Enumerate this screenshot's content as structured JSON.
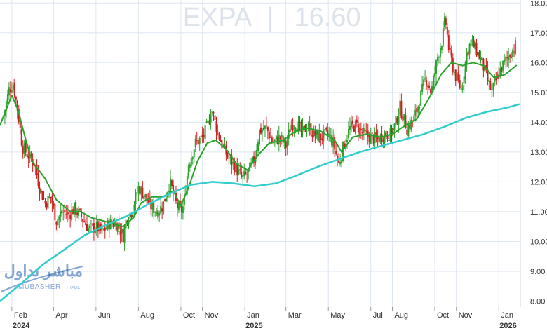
{
  "header": {
    "symbol": "EXPA",
    "separator": "|",
    "price": "16.60"
  },
  "watermark": {
    "arabic": "مباشر تداول",
    "latin": "MUBASHER",
    "sub": "TRADE"
  },
  "colors": {
    "up": "#2ca02c",
    "down": "#cc1f1f",
    "ma_short": "#2aa12a",
    "ma_long": "#33cccc",
    "grid": "#dde6f0",
    "axis_text": "#333333",
    "header_text": "#dde3ea",
    "logo": "#1f5fb0"
  },
  "chart_data": {
    "type": "candlestick",
    "title": "EXPA | 16.60",
    "x_ticks": [
      {
        "label": "Feb",
        "date": "2024-02-01"
      },
      {
        "label": "Apr",
        "date": "2024-04-01"
      },
      {
        "label": "Jun",
        "date": "2024-06-01"
      },
      {
        "label": "Aug",
        "date": "2024-08-01"
      },
      {
        "label": "Oct",
        "date": "2024-10-01"
      },
      {
        "label": "Nov",
        "date": "2024-11-01"
      },
      {
        "label": "Jan",
        "date": "2025-01-01"
      },
      {
        "label": "Mar",
        "date": "2025-03-01"
      },
      {
        "label": "May",
        "date": "2025-05-01"
      },
      {
        "label": "Jul",
        "date": "2025-07-01"
      },
      {
        "label": "Aug",
        "date": "2025-08-01"
      },
      {
        "label": "Oct",
        "date": "2025-10-01"
      },
      {
        "label": "Nov",
        "date": "2025-11-01"
      },
      {
        "label": "Jan",
        "date": "2026-01-01"
      }
    ],
    "year_labels": [
      {
        "label": "2024",
        "date": "2024-02-01"
      },
      {
        "label": "2025",
        "date": "2025-01-01"
      },
      {
        "label": "2026",
        "date": "2026-01-01"
      }
    ],
    "y_ticks": [
      "8.00",
      "9.00",
      "10.00",
      "11.00",
      "12.00",
      "13.00",
      "14.00",
      "15.00",
      "16.00",
      "17.00",
      "18.00"
    ],
    "ylim": [
      7.8,
      18.1
    ],
    "xlim": [
      "2024-01-15",
      "2026-02-01"
    ],
    "price_anchors": [
      [
        "2024-01-20",
        14.2
      ],
      [
        "2024-01-28",
        15.1
      ],
      [
        "2024-02-03",
        15.3
      ],
      [
        "2024-02-10",
        14.3
      ],
      [
        "2024-02-16",
        13.2
      ],
      [
        "2024-02-24",
        12.9
      ],
      [
        "2024-03-05",
        12.6
      ],
      [
        "2024-03-12",
        11.8
      ],
      [
        "2024-03-20",
        11.3
      ],
      [
        "2024-03-28",
        11.5
      ],
      [
        "2024-04-05",
        10.7
      ],
      [
        "2024-04-14",
        11.0
      ],
      [
        "2024-04-22",
        10.9
      ],
      [
        "2024-05-01",
        11.1
      ],
      [
        "2024-05-12",
        10.8
      ],
      [
        "2024-05-22",
        10.4
      ],
      [
        "2024-06-01",
        10.5
      ],
      [
        "2024-06-10",
        10.3
      ],
      [
        "2024-06-20",
        10.6
      ],
      [
        "2024-07-01",
        10.6
      ],
      [
        "2024-07-10",
        10.2
      ],
      [
        "2024-07-15",
        10.8
      ],
      [
        "2024-07-22",
        11.0
      ],
      [
        "2024-08-01",
        11.8
      ],
      [
        "2024-08-08",
        11.6
      ],
      [
        "2024-08-18",
        11.2
      ],
      [
        "2024-08-28",
        11.0
      ],
      [
        "2024-09-05",
        11.2
      ],
      [
        "2024-09-15",
        12.0
      ],
      [
        "2024-09-25",
        11.2
      ],
      [
        "2024-10-01",
        11.0
      ],
      [
        "2024-10-05",
        11.2
      ],
      [
        "2024-10-12",
        12.6
      ],
      [
        "2024-10-22",
        13.3
      ],
      [
        "2024-11-02",
        13.5
      ],
      [
        "2024-11-10",
        14.0
      ],
      [
        "2024-11-14",
        14.5
      ],
      [
        "2024-11-20",
        13.9
      ],
      [
        "2024-11-28",
        13.3
      ],
      [
        "2024-12-08",
        12.8
      ],
      [
        "2024-12-18",
        12.5
      ],
      [
        "2024-12-28",
        12.1
      ],
      [
        "2025-01-06",
        12.3
      ],
      [
        "2025-01-15",
        12.8
      ],
      [
        "2025-01-22",
        13.7
      ],
      [
        "2025-02-01",
        13.8
      ],
      [
        "2025-02-10",
        13.3
      ],
      [
        "2025-02-20",
        13.5
      ],
      [
        "2025-03-01",
        13.2
      ],
      [
        "2025-03-08",
        13.9
      ],
      [
        "2025-03-16",
        14.0
      ],
      [
        "2025-03-24",
        13.6
      ],
      [
        "2025-04-01",
        13.9
      ],
      [
        "2025-04-10",
        13.6
      ],
      [
        "2025-04-20",
        13.5
      ],
      [
        "2025-05-01",
        13.6
      ],
      [
        "2025-05-08",
        13.3
      ],
      [
        "2025-05-16",
        12.6
      ],
      [
        "2025-05-24",
        13.3
      ],
      [
        "2025-06-01",
        13.8
      ],
      [
        "2025-06-10",
        13.9
      ],
      [
        "2025-06-20",
        13.6
      ],
      [
        "2025-07-01",
        13.5
      ],
      [
        "2025-07-10",
        13.4
      ],
      [
        "2025-07-20",
        13.6
      ],
      [
        "2025-07-30",
        13.6
      ],
      [
        "2025-08-05",
        13.9
      ],
      [
        "2025-08-12",
        14.5
      ],
      [
        "2025-08-22",
        13.8
      ],
      [
        "2025-09-01",
        14.1
      ],
      [
        "2025-09-10",
        14.8
      ],
      [
        "2025-09-18",
        15.5
      ],
      [
        "2025-09-26",
        15.0
      ],
      [
        "2025-10-05",
        16.2
      ],
      [
        "2025-10-12",
        16.8
      ],
      [
        "2025-10-16",
        17.5
      ],
      [
        "2025-10-22",
        16.3
      ],
      [
        "2025-10-30",
        15.6
      ],
      [
        "2025-11-08",
        15.1
      ],
      [
        "2025-11-16",
        16.3
      ],
      [
        "2025-11-22",
        16.7
      ],
      [
        "2025-11-30",
        16.4
      ],
      [
        "2025-12-08",
        16.0
      ],
      [
        "2025-12-16",
        15.4
      ],
      [
        "2025-12-22",
        15.0
      ],
      [
        "2025-12-28",
        15.4
      ],
      [
        "2026-01-04",
        15.8
      ],
      [
        "2026-01-12",
        16.1
      ],
      [
        "2026-01-20",
        16.4
      ],
      [
        "2026-01-26",
        16.6
      ]
    ],
    "series": [
      {
        "name": "",
        "type": "line",
        "color": "#2aa12a",
        "points": [
          [
            "2024-01-15",
            13.9
          ],
          [
            "2024-02-01",
            14.9
          ],
          [
            "2024-02-10",
            14.4
          ],
          [
            "2024-02-20",
            13.5
          ],
          [
            "2024-03-01",
            12.7
          ],
          [
            "2024-03-20",
            12.1
          ],
          [
            "2024-04-05",
            11.4
          ],
          [
            "2024-04-25",
            11.0
          ],
          [
            "2024-05-10",
            11.0
          ],
          [
            "2024-05-25",
            10.8
          ],
          [
            "2024-06-10",
            10.7
          ],
          [
            "2024-06-25",
            10.6
          ],
          [
            "2024-07-10",
            10.5
          ],
          [
            "2024-07-25",
            10.8
          ],
          [
            "2024-08-05",
            11.3
          ],
          [
            "2024-08-20",
            11.5
          ],
          [
            "2024-09-05",
            11.5
          ],
          [
            "2024-09-20",
            11.7
          ],
          [
            "2024-10-01",
            11.2
          ],
          [
            "2024-10-12",
            11.8
          ],
          [
            "2024-10-25",
            12.7
          ],
          [
            "2024-11-08",
            13.3
          ],
          [
            "2024-11-20",
            13.4
          ],
          [
            "2024-12-05",
            13.1
          ],
          [
            "2024-12-20",
            12.6
          ],
          [
            "2025-01-05",
            12.4
          ],
          [
            "2025-01-20",
            12.9
          ],
          [
            "2025-02-05",
            13.3
          ],
          [
            "2025-02-25",
            13.4
          ],
          [
            "2025-03-15",
            13.7
          ],
          [
            "2025-04-01",
            13.8
          ],
          [
            "2025-04-20",
            13.7
          ],
          [
            "2025-05-10",
            13.4
          ],
          [
            "2025-05-20",
            13.0
          ],
          [
            "2025-06-05",
            13.5
          ],
          [
            "2025-06-25",
            13.6
          ],
          [
            "2025-07-15",
            13.5
          ],
          [
            "2025-08-01",
            13.6
          ],
          [
            "2025-08-20",
            13.9
          ],
          [
            "2025-09-05",
            14.1
          ],
          [
            "2025-09-25",
            14.9
          ],
          [
            "2025-10-10",
            15.6
          ],
          [
            "2025-10-25",
            16.0
          ],
          [
            "2025-11-10",
            15.9
          ],
          [
            "2025-11-25",
            16.0
          ],
          [
            "2025-12-10",
            15.9
          ],
          [
            "2025-12-25",
            15.5
          ],
          [
            "2026-01-10",
            15.6
          ],
          [
            "2026-01-26",
            15.9
          ]
        ]
      },
      {
        "name": "",
        "type": "line",
        "color": "#33cccc",
        "points": [
          [
            "2024-01-15",
            8.0
          ],
          [
            "2024-02-15",
            8.6
          ],
          [
            "2024-03-15",
            9.2
          ],
          [
            "2024-04-15",
            9.7
          ],
          [
            "2024-05-15",
            10.2
          ],
          [
            "2024-06-15",
            10.55
          ],
          [
            "2024-07-15",
            10.85
          ],
          [
            "2024-08-15",
            11.25
          ],
          [
            "2024-09-15",
            11.6
          ],
          [
            "2024-10-15",
            11.9
          ],
          [
            "2024-11-15",
            12.0
          ],
          [
            "2024-12-15",
            11.95
          ],
          [
            "2025-01-15",
            11.85
          ],
          [
            "2025-02-15",
            11.95
          ],
          [
            "2025-03-15",
            12.2
          ],
          [
            "2025-04-15",
            12.5
          ],
          [
            "2025-05-15",
            12.75
          ],
          [
            "2025-06-15",
            13.0
          ],
          [
            "2025-07-15",
            13.2
          ],
          [
            "2025-08-15",
            13.4
          ],
          [
            "2025-09-15",
            13.6
          ],
          [
            "2025-10-15",
            13.85
          ],
          [
            "2025-11-15",
            14.15
          ],
          [
            "2025-12-15",
            14.35
          ],
          [
            "2026-01-15",
            14.5
          ],
          [
            "2026-01-30",
            14.6
          ]
        ]
      }
    ]
  }
}
